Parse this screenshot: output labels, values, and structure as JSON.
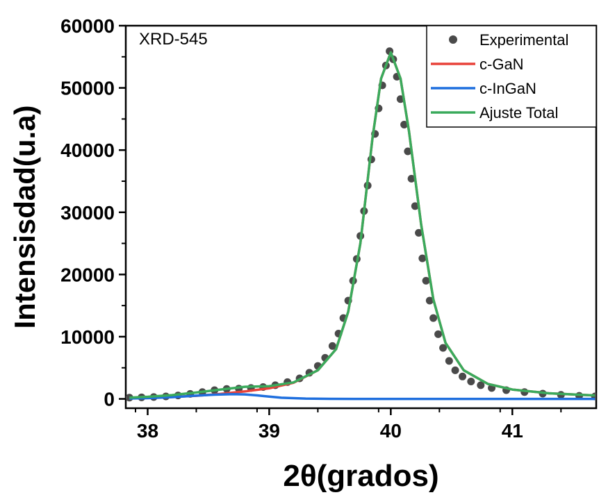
{
  "chart_data": {
    "type": "line",
    "title": "",
    "xlabel": "2θ(grados)",
    "ylabel": "Intensisdad(u.a)",
    "annotation": "XRD-545",
    "xlim": [
      37.82,
      41.69
    ],
    "ylim": [
      -1500,
      60000
    ],
    "xticks": [
      {
        "value": 38,
        "label": "38"
      },
      {
        "value": 39,
        "label": "39"
      },
      {
        "value": 40,
        "label": "40"
      },
      {
        "value": 41,
        "label": "41"
      }
    ],
    "yticks": [
      {
        "value": 0,
        "label": "0"
      },
      {
        "value": 10000,
        "label": "10000"
      },
      {
        "value": 20000,
        "label": "20000"
      },
      {
        "value": 30000,
        "label": "30000"
      },
      {
        "value": 40000,
        "label": "40000"
      },
      {
        "value": 50000,
        "label": "50000"
      },
      {
        "value": 60000,
        "label": "60000"
      }
    ],
    "legend_position": "top-right",
    "series": [
      {
        "name": "Experimental",
        "style": "markers",
        "color": "#4a4a4a",
        "x": [
          37.85,
          37.95,
          38.05,
          38.15,
          38.25,
          38.35,
          38.45,
          38.55,
          38.65,
          38.75,
          38.85,
          38.95,
          39.05,
          39.15,
          39.25,
          39.33,
          39.4,
          39.46,
          39.52,
          39.57,
          39.61,
          39.65,
          39.69,
          39.72,
          39.75,
          39.78,
          39.81,
          39.84,
          39.87,
          39.9,
          39.93,
          39.96,
          39.99,
          40.02,
          40.05,
          40.08,
          40.11,
          40.14,
          40.17,
          40.2,
          40.23,
          40.26,
          40.29,
          40.32,
          40.35,
          40.39,
          40.43,
          40.48,
          40.53,
          40.59,
          40.66,
          40.74,
          40.83,
          40.95,
          41.1,
          41.25,
          41.4,
          41.55,
          41.68
        ],
        "y": [
          200,
          250,
          300,
          400,
          550,
          800,
          1100,
          1400,
          1600,
          1650,
          1750,
          1900,
          2200,
          2700,
          3300,
          4200,
          5300,
          6600,
          8500,
          10500,
          13000,
          15800,
          19000,
          22500,
          26200,
          30200,
          34300,
          38500,
          42600,
          46700,
          50400,
          53600,
          55900,
          54600,
          51800,
          48200,
          44100,
          39800,
          35400,
          31000,
          26700,
          22600,
          19000,
          15800,
          13000,
          10400,
          8200,
          6100,
          4600,
          3600,
          2800,
          2200,
          1750,
          1400,
          1100,
          850,
          650,
          500,
          400
        ]
      },
      {
        "name": "c-GaN",
        "style": "line",
        "color": "#e8423a",
        "x": [
          37.85,
          38.0,
          38.2,
          38.4,
          38.6,
          38.8,
          39.0,
          39.2,
          39.4,
          39.55,
          39.65,
          39.75,
          39.85,
          39.92,
          40.0,
          40.08,
          40.15,
          40.25,
          40.35,
          40.45,
          40.6,
          40.8,
          41.0,
          41.3,
          41.68
        ],
        "y": [
          150,
          220,
          330,
          500,
          800,
          1200,
          1700,
          2600,
          4600,
          8000,
          14000,
          25000,
          42000,
          51500,
          55700,
          51500,
          43000,
          28000,
          16000,
          9000,
          4600,
          2400,
          1500,
          900,
          550
        ]
      },
      {
        "name": "c-InGaN",
        "style": "line",
        "color": "#1f6fde",
        "x": [
          37.85,
          38.0,
          38.2,
          38.4,
          38.55,
          38.7,
          38.8,
          38.9,
          39.0,
          39.1,
          39.3,
          39.5,
          39.8,
          40.2,
          40.8,
          41.68
        ],
        "y": [
          60,
          120,
          280,
          520,
          680,
          760,
          720,
          560,
          360,
          190,
          50,
          10,
          0,
          0,
          0,
          0
        ]
      },
      {
        "name": "Ajuste Total",
        "style": "line",
        "color": "#3aaa5c",
        "x": [
          37.85,
          38.0,
          38.2,
          38.4,
          38.6,
          38.8,
          39.0,
          39.2,
          39.4,
          39.55,
          39.65,
          39.75,
          39.85,
          39.92,
          40.0,
          40.08,
          40.15,
          40.25,
          40.35,
          40.45,
          40.6,
          40.8,
          41.0,
          41.3,
          41.68
        ],
        "y": [
          210,
          340,
          610,
          1020,
          1500,
          1950,
          2050,
          2650,
          4600,
          8000,
          14000,
          25000,
          42000,
          51500,
          55700,
          51500,
          43000,
          28000,
          16000,
          9000,
          4600,
          2400,
          1500,
          900,
          550
        ]
      }
    ]
  }
}
